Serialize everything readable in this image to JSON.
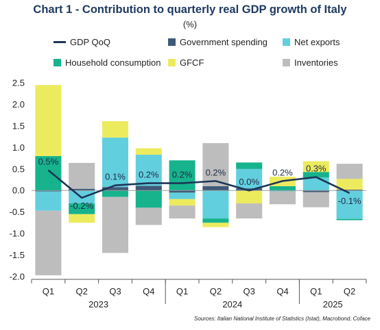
{
  "title": "Chart 1 - Contribution to quarterly real GDP growth of Italy",
  "subtitle": "(%)",
  "source": "Sources: Italian National Institute of Statistics (Istat), Macrobond, Coface",
  "legend": [
    {
      "key": "gdp",
      "label": "GDP QoQ",
      "kind": "line",
      "color": "#1d3557"
    },
    {
      "key": "gov",
      "label": "Government spending",
      "kind": "box",
      "color": "#3f5a78"
    },
    {
      "key": "netexp",
      "label": "Net exports",
      "kind": "box",
      "color": "#62cfde"
    },
    {
      "key": "hh",
      "label": "Household consumption",
      "kind": "box",
      "color": "#16b38c"
    },
    {
      "key": "gfcf",
      "label": "GFCF",
      "kind": "box",
      "color": "#eceb5e"
    },
    {
      "key": "inv",
      "label": "Inventories",
      "kind": "box",
      "color": "#bdbdbd"
    }
  ],
  "chart_data": {
    "type": "bar",
    "stacked": true,
    "categories": [
      "Q1",
      "Q2",
      "Q3",
      "Q4",
      "Q1",
      "Q2",
      "Q3",
      "Q4",
      "Q1",
      "Q2"
    ],
    "years": [
      {
        "label": "2023",
        "from": 0,
        "to": 3
      },
      {
        "label": "2024",
        "from": 4,
        "to": 7
      },
      {
        "label": "2025",
        "from": 8,
        "to": 9
      }
    ],
    "ylim": [
      -2.0,
      2.5
    ],
    "yticks": [
      2.5,
      2.0,
      1.5,
      1.0,
      0.5,
      0.0,
      -0.5,
      -1.0,
      -1.5,
      -2.0
    ],
    "series": [
      {
        "name": "Government spending",
        "key": "gov",
        "values": [
          -0.02,
          0.04,
          0.08,
          0.11,
          -0.05,
          0.1,
          0.05,
          0.0,
          -0.04,
          0.02
        ]
      },
      {
        "name": "Net exports",
        "key": "netexp",
        "values": [
          -0.45,
          -0.3,
          1.15,
          0.72,
          -0.15,
          -0.65,
          0.45,
          -0.02,
          0.3,
          -0.66
        ]
      },
      {
        "name": "Household consumption",
        "key": "hh",
        "values": [
          0.8,
          -0.25,
          -0.15,
          -0.4,
          0.7,
          -0.1,
          0.15,
          0.1,
          0.13,
          -0.03
        ]
      },
      {
        "name": "GFCF",
        "key": "gfcf",
        "values": [
          1.65,
          -0.2,
          0.38,
          0.15,
          -0.15,
          -0.1,
          -0.3,
          0.22,
          0.25,
          0.25
        ]
      },
      {
        "name": "Inventories",
        "key": "inv",
        "values": [
          -1.5,
          0.6,
          -1.3,
          -0.4,
          -0.3,
          1.0,
          -0.35,
          -0.3,
          -0.35,
          0.35
        ]
      }
    ],
    "gdp": {
      "name": "GDP QoQ",
      "values": [
        0.47,
        -0.17,
        0.12,
        0.17,
        0.17,
        0.22,
        0.0,
        0.22,
        0.31,
        -0.06
      ],
      "labels": [
        "0.5%",
        "-0.2%",
        "0.1%",
        "0.2%",
        "0.2%",
        "0.2%",
        "0.0%",
        "0.2%",
        "0.3%",
        "-0.1%"
      ]
    },
    "grid": false
  }
}
